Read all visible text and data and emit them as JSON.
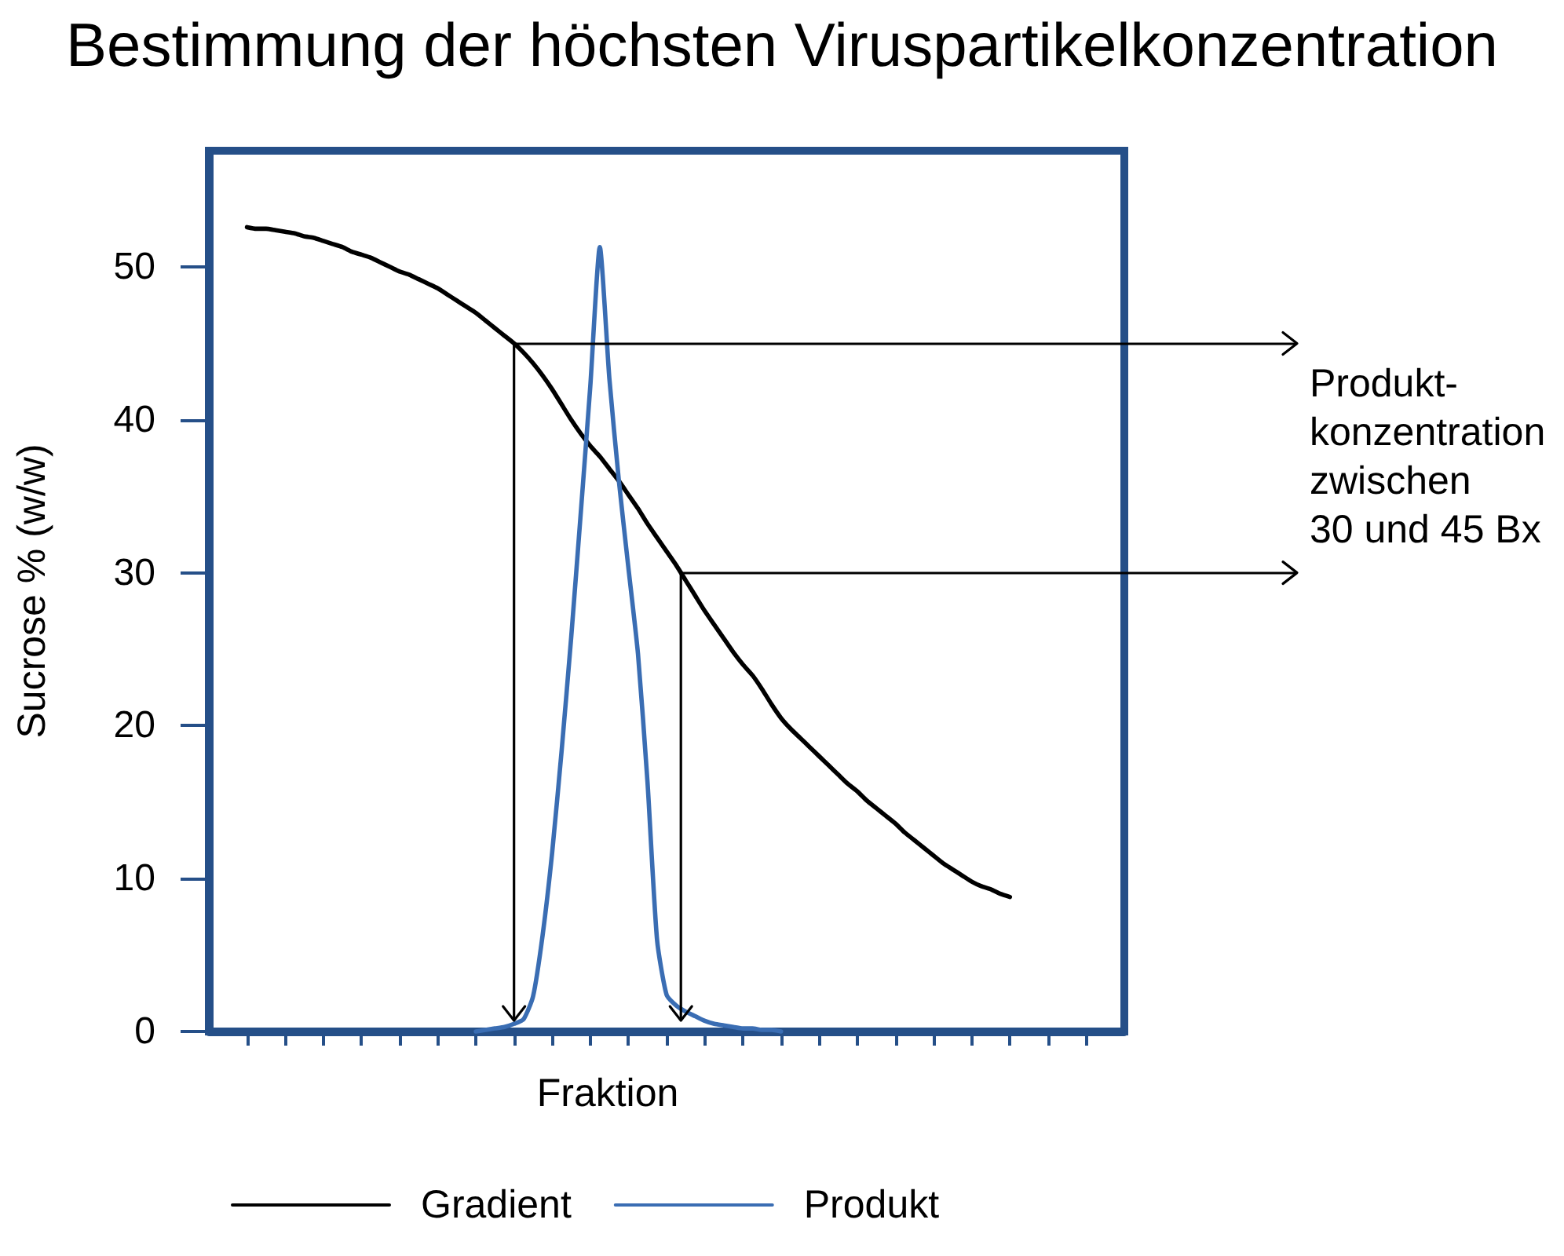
{
  "chart_data": {
    "type": "line",
    "title": "Bestimmung der höchsten Viruspartikelkonzentration",
    "xlabel": "Fraktion",
    "ylabel": "Sucrose % (w/w)",
    "categories": [
      null,
      null,
      null,
      null,
      null,
      null,
      null,
      null,
      null,
      null,
      null,
      null,
      null,
      null,
      null,
      null,
      null,
      null,
      null,
      null,
      null,
      null,
      null,
      null,
      null,
      null,
      null,
      null,
      null,
      null,
      null,
      null,
      null,
      null,
      null,
      null,
      null,
      null,
      null,
      null,
      null,
      null,
      null,
      null,
      null,
      null,
      null,
      null,
      null,
      null,
      null,
      null,
      null,
      null,
      null,
      null,
      null,
      null,
      null,
      null,
      null,
      null,
      null,
      null,
      null,
      null,
      null,
      null,
      null,
      null,
      null,
      null,
      null,
      null,
      null,
      null,
      null,
      null,
      null,
      null,
      null,
      null,
      null,
      null,
      null,
      null,
      null,
      null,
      null,
      null,
      null,
      null,
      null,
      null,
      null,
      null,
      null
    ],
    "series": [
      {
        "name": "Gradient",
        "color": "#000000",
        "values": [
          null,
          null,
          null,
          null,
          52.6,
          52.5,
          52.5,
          52.4,
          52.3,
          52.2,
          52.0,
          51.9,
          51.7,
          51.5,
          51.3,
          51.0,
          50.8,
          50.6,
          50.3,
          50.0,
          49.7,
          49.5,
          49.2,
          48.9,
          48.6,
          48.2,
          47.8,
          47.4,
          47.0,
          46.5,
          46.0,
          45.5,
          45.0,
          44.4,
          43.7,
          42.9,
          42.0,
          41.0,
          40.0,
          39.1,
          38.3,
          37.6,
          36.8,
          36.0,
          35.1,
          34.2,
          33.2,
          32.3,
          31.4,
          30.5,
          29.5,
          28.5,
          27.5,
          26.6,
          25.7,
          24.8,
          24.0,
          23.3,
          22.4,
          21.4,
          20.5,
          19.8,
          19.2,
          18.6,
          18.0,
          17.4,
          16.8,
          16.2,
          15.7,
          15.1,
          14.6,
          14.1,
          13.6,
          13.0,
          12.5,
          12.0,
          11.5,
          11.0,
          10.6,
          10.2,
          9.8,
          9.5,
          9.3,
          9.0,
          8.8,
          null,
          null,
          null,
          null,
          null,
          null,
          null,
          null,
          null,
          null,
          null,
          null
        ]
      },
      {
        "name": "Produkt",
        "color": "#3a6db3",
        "values": [
          null,
          null,
          null,
          null,
          null,
          null,
          null,
          null,
          null,
          null,
          null,
          null,
          null,
          null,
          null,
          null,
          null,
          null,
          null,
          null,
          null,
          null,
          null,
          null,
          null,
          null,
          null,
          null,
          0,
          0.1,
          0.2,
          0.3,
          0.5,
          0.8,
          2.3,
          6.3,
          11.7,
          18.4,
          25.8,
          33.9,
          42.2,
          51.3,
          42.7,
          36.0,
          30.3,
          24.7,
          16.3,
          6.0,
          2.4,
          1.7,
          1.3,
          1.0,
          0.7,
          0.5,
          0.4,
          0.3,
          0.2,
          0.2,
          0.1,
          0.1,
          0,
          null,
          null,
          null,
          null,
          null,
          null,
          null,
          null,
          null,
          null,
          null,
          null,
          null,
          null,
          null,
          null,
          null,
          null,
          null,
          null,
          null,
          null,
          null,
          null,
          null,
          null,
          null,
          null,
          null,
          null,
          null,
          null,
          null,
          null,
          null,
          null
        ]
      }
    ],
    "ylim": [
      0,
      57.6
    ],
    "yticks": [
      0,
      10,
      20,
      30,
      40,
      50
    ],
    "tick_labels": "y",
    "grid": false,
    "legend": "bottom",
    "marker": "none",
    "line_style": "solid",
    "ref_lines": [
      {
        "axis": "y",
        "value": 45,
        "color": "#000000"
      },
      {
        "axis": "y",
        "value": 30,
        "color": "#000000"
      }
    ],
    "annotations": [
      "Produkt-\nkonzentration\nzwischen\n30 und 45 Bx"
    ]
  }
}
